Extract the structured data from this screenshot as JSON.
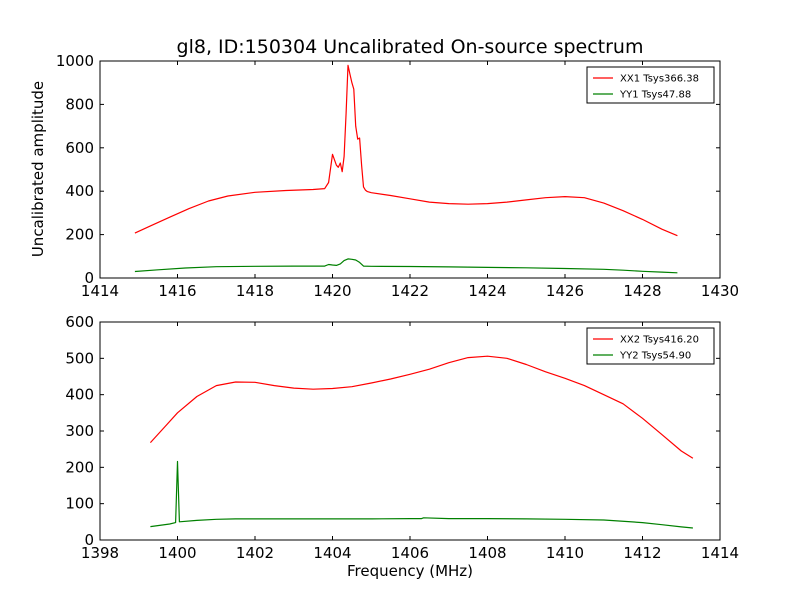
{
  "chart_data": [
    {
      "type": "line",
      "title": "gl8, ID:150304 Uncalibrated On-source spectrum",
      "xlabel": "",
      "ylabel": "Uncalibrated amplitude",
      "xlim": [
        1414,
        1430
      ],
      "ylim": [
        0,
        1000
      ],
      "xticks": [
        "1414",
        "1416",
        "1418",
        "1420",
        "1422",
        "1424",
        "1426",
        "1428",
        "1430"
      ],
      "yticks": [
        "0",
        "200",
        "400",
        "600",
        "800",
        "1000"
      ],
      "legend_position": "top-right",
      "series": [
        {
          "name": "XX1 Tsys366.38",
          "color": "#ff0000",
          "x": [
            1414.9,
            1415.3,
            1415.8,
            1416.3,
            1416.8,
            1417.3,
            1418.0,
            1418.8,
            1419.5,
            1419.8,
            1419.9,
            1420.0,
            1420.1,
            1420.15,
            1420.2,
            1420.25,
            1420.3,
            1420.35,
            1420.4,
            1420.45,
            1420.5,
            1420.55,
            1420.6,
            1420.65,
            1420.7,
            1420.75,
            1420.8,
            1420.85,
            1420.9,
            1421.0,
            1421.5,
            1422.0,
            1422.5,
            1423.0,
            1423.5,
            1424.0,
            1424.5,
            1425.0,
            1425.5,
            1426.0,
            1426.5,
            1427.0,
            1427.5,
            1428.0,
            1428.5,
            1428.9
          ],
          "y": [
            207,
            240,
            280,
            320,
            355,
            378,
            395,
            403,
            408,
            412,
            440,
            570,
            520,
            510,
            530,
            490,
            560,
            760,
            980,
            940,
            900,
            870,
            700,
            640,
            645,
            520,
            420,
            405,
            398,
            393,
            380,
            365,
            350,
            343,
            340,
            343,
            350,
            360,
            370,
            375,
            370,
            345,
            310,
            270,
            225,
            195
          ]
        },
        {
          "name": "YY1 Tsys47.88",
          "color": "#008000",
          "x": [
            1414.9,
            1415.5,
            1416.2,
            1417.0,
            1418.0,
            1419.0,
            1419.8,
            1419.9,
            1420.0,
            1420.1,
            1420.2,
            1420.3,
            1420.4,
            1420.5,
            1420.6,
            1420.7,
            1420.8,
            1421.0,
            1422.0,
            1423.0,
            1424.0,
            1425.0,
            1426.0,
            1427.0,
            1427.5,
            1428.0,
            1428.5,
            1428.9
          ],
          "y": [
            30,
            38,
            46,
            52,
            54,
            55,
            55,
            62,
            60,
            58,
            65,
            80,
            88,
            86,
            83,
            72,
            55,
            54,
            53,
            51,
            49,
            47,
            44,
            40,
            36,
            31,
            27,
            24
          ]
        }
      ]
    },
    {
      "type": "line",
      "title": "",
      "xlabel": "Frequency (MHz)",
      "ylabel": "",
      "xlim": [
        1398,
        1414
      ],
      "ylim": [
        0,
        600
      ],
      "xticks": [
        "1398",
        "1400",
        "1402",
        "1404",
        "1406",
        "1408",
        "1410",
        "1412",
        "1414"
      ],
      "yticks": [
        "0",
        "100",
        "200",
        "300",
        "400",
        "500",
        "600"
      ],
      "legend_position": "top-right",
      "series": [
        {
          "name": "XX2 Tsys416.20",
          "color": "#ff0000",
          "x": [
            1399.3,
            1399.7,
            1400.0,
            1400.5,
            1401.0,
            1401.5,
            1402.0,
            1402.5,
            1403.0,
            1403.5,
            1404.0,
            1404.5,
            1405.0,
            1405.5,
            1406.0,
            1406.5,
            1407.0,
            1407.5,
            1408.0,
            1408.5,
            1409.0,
            1409.5,
            1410.0,
            1410.5,
            1411.0,
            1411.5,
            1412.0,
            1412.5,
            1413.0,
            1413.3
          ],
          "y": [
            268,
            315,
            350,
            395,
            425,
            435,
            434,
            425,
            418,
            415,
            417,
            422,
            432,
            443,
            456,
            470,
            488,
            502,
            506,
            500,
            483,
            463,
            445,
            425,
            400,
            375,
            335,
            290,
            245,
            225
          ]
        },
        {
          "name": "YY2 Tsys54.90",
          "color": "#008000",
          "x": [
            1399.3,
            1399.8,
            1399.95,
            1400.0,
            1400.05,
            1400.5,
            1401.0,
            1401.5,
            1402.0,
            1403.0,
            1404.0,
            1405.0,
            1406.0,
            1406.3,
            1406.35,
            1407.0,
            1408.0,
            1409.0,
            1410.0,
            1411.0,
            1412.0,
            1412.5,
            1413.0,
            1413.3
          ],
          "y": [
            37,
            44,
            48,
            216,
            50,
            54,
            57,
            58,
            58,
            58,
            58,
            58,
            59,
            59,
            61,
            59,
            59,
            58,
            57,
            55,
            48,
            42,
            36,
            33
          ]
        }
      ]
    }
  ]
}
